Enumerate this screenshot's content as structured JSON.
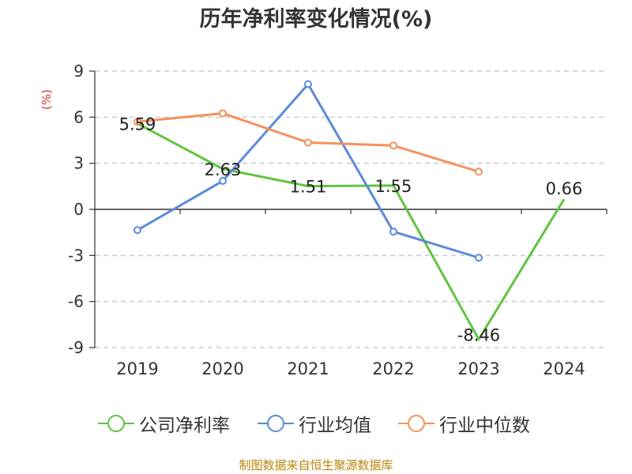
{
  "title": "历年净利率变化情况(%)",
  "source": "制图数据来自恒生聚源数据库",
  "chart_data": {
    "type": "line",
    "title": "历年净利率变化情况(%)",
    "xlabel": "",
    "ylabel": "(%)",
    "categories": [
      "2019",
      "2020",
      "2021",
      "2022",
      "2023",
      "2024"
    ],
    "ylim": [
      -9,
      9
    ],
    "yticks": [
      9,
      6,
      3,
      0,
      -3,
      -6,
      -9
    ],
    "grid": true,
    "legend_position": "bottom",
    "series": [
      {
        "name": "公司净利率",
        "color": "#5fc43f",
        "values": [
          5.59,
          2.63,
          1.51,
          1.55,
          -8.46,
          0.66
        ],
        "labels": [
          "5.59",
          "2.63",
          "1.51",
          "1.55",
          "-8.46",
          "0.66"
        ]
      },
      {
        "name": "行业均值",
        "color": "#5b8ad9",
        "values": [
          -1.35,
          1.85,
          8.15,
          -1.45,
          -3.15,
          null
        ]
      },
      {
        "name": "行业中位数",
        "color": "#f4915c",
        "values": [
          5.7,
          6.25,
          4.35,
          4.15,
          2.45,
          null
        ]
      }
    ]
  }
}
